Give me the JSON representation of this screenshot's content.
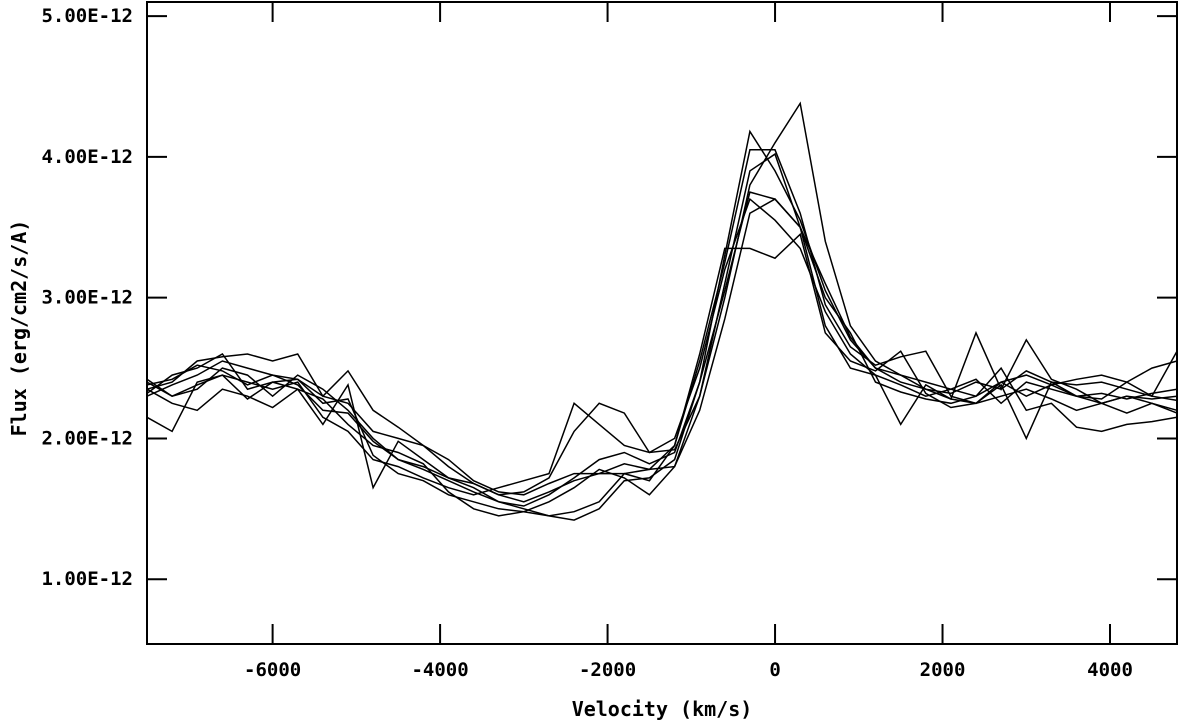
{
  "chart_data": {
    "type": "line",
    "xlabel": "Velocity (km/s)",
    "ylabel": "Flux (erg/cm2/s/A)",
    "xlim": [
      -7500,
      4800
    ],
    "ylim": [
      5.4e-13,
      5.1e-12
    ],
    "xticks": [
      {
        "value": -6000,
        "label": "-6000"
      },
      {
        "value": -4000,
        "label": "-4000"
      },
      {
        "value": -2000,
        "label": "-2000"
      },
      {
        "value": 0,
        "label": "0"
      },
      {
        "value": 2000,
        "label": "2000"
      },
      {
        "value": 4000,
        "label": "4000"
      }
    ],
    "yticks": [
      {
        "value": 1e-12,
        "label": "1.00E-12"
      },
      {
        "value": 2e-12,
        "label": "2.00E-12"
      },
      {
        "value": 3e-12,
        "label": "3.00E-12"
      },
      {
        "value": 4e-12,
        "label": "4.00E-12"
      },
      {
        "value": 5e-12,
        "label": "5.00E-12"
      }
    ],
    "grid": false,
    "legend": false,
    "x": [
      -7500,
      -7200,
      -6900,
      -6600,
      -6300,
      -6000,
      -5700,
      -5400,
      -5100,
      -4800,
      -4500,
      -4200,
      -3900,
      -3600,
      -3300,
      -3000,
      -2700,
      -2400,
      -2100,
      -1800,
      -1500,
      -1200,
      -900,
      -600,
      -300,
      0,
      300,
      600,
      900,
      1200,
      1500,
      1800,
      2100,
      2400,
      2700,
      3000,
      3300,
      3600,
      3900,
      4200,
      4500,
      4800
    ],
    "series": [
      {
        "values": [
          2.3e-12,
          2.38e-12,
          2.45e-12,
          2.55e-12,
          2.5e-12,
          2.45e-12,
          2.42e-12,
          2.3e-12,
          2.25e-12,
          2.05e-12,
          2e-12,
          1.95e-12,
          1.8e-12,
          1.68e-12,
          1.6e-12,
          1.55e-12,
          1.62e-12,
          1.7e-12,
          1.75e-12,
          1.82e-12,
          1.78e-12,
          1.8e-12,
          2.3e-12,
          3e-12,
          3.8e-12,
          4.1e-12,
          4.38e-12,
          3.4e-12,
          2.8e-12,
          2.55e-12,
          2.45e-12,
          2.4e-12,
          2.35e-12,
          2.3e-12,
          2.4e-12,
          2.45e-12,
          2.38e-12,
          2.3e-12,
          2.25e-12,
          2.3e-12,
          2.28e-12,
          2.3e-12
        ]
      },
      {
        "values": [
          2.4e-12,
          2.3e-12,
          2.35e-12,
          2.5e-12,
          2.45e-12,
          2.3e-12,
          2.45e-12,
          2.35e-12,
          2.2e-12,
          2e-12,
          1.85e-12,
          1.78e-12,
          1.7e-12,
          1.62e-12,
          1.55e-12,
          1.5e-12,
          1.45e-12,
          1.42e-12,
          1.5e-12,
          1.7e-12,
          1.72e-12,
          1.85e-12,
          2.4e-12,
          3.3e-12,
          4.18e-12,
          3.9e-12,
          3.55e-12,
          3.05e-12,
          2.7e-12,
          2.5e-12,
          2.4e-12,
          2.35e-12,
          2.28e-12,
          2.25e-12,
          2.3e-12,
          2.35e-12,
          2.28e-12,
          2.2e-12,
          2.25e-12,
          2.3e-12,
          2.25e-12,
          2.2e-12
        ]
      },
      {
        "values": [
          2.15e-12,
          2.05e-12,
          2.4e-12,
          2.45e-12,
          2.4e-12,
          2.35e-12,
          2.4e-12,
          2.15e-12,
          2.05e-12,
          1.85e-12,
          1.8e-12,
          1.72e-12,
          1.65e-12,
          1.6e-12,
          1.65e-12,
          1.7e-12,
          1.75e-12,
          2.25e-12,
          2.1e-12,
          1.95e-12,
          1.9e-12,
          2e-12,
          2.5e-12,
          3.2e-12,
          3.7e-12,
          3.55e-12,
          3.35e-12,
          2.9e-12,
          2.6e-12,
          2.45e-12,
          2.38e-12,
          2.3e-12,
          2.35e-12,
          2.42e-12,
          2.25e-12,
          2.4e-12,
          2.35e-12,
          2.3e-12,
          2.32e-12,
          2.28e-12,
          2.32e-12,
          2.35e-12
        ]
      },
      {
        "values": [
          2.35e-12,
          2.25e-12,
          2.2e-12,
          2.35e-12,
          2.3e-12,
          2.22e-12,
          2.35e-12,
          2.28e-12,
          2.1e-12,
          1.95e-12,
          1.9e-12,
          1.82e-12,
          1.62e-12,
          1.5e-12,
          1.45e-12,
          1.48e-12,
          1.55e-12,
          1.65e-12,
          1.78e-12,
          1.72e-12,
          1.6e-12,
          1.8e-12,
          2.2e-12,
          2.85e-12,
          3.6e-12,
          3.7e-12,
          3.5e-12,
          3e-12,
          2.75e-12,
          2.4e-12,
          2.33e-12,
          2.28e-12,
          2.25e-12,
          2.3e-12,
          2.5e-12,
          2.2e-12,
          2.25e-12,
          2.08e-12,
          2.05e-12,
          2.1e-12,
          2.12e-12,
          2.15e-12
        ]
      },
      {
        "values": [
          2.38e-12,
          2.42e-12,
          2.52e-12,
          2.48e-12,
          2.38e-12,
          2.45e-12,
          2.38e-12,
          2.2e-12,
          2.18e-12,
          1.98e-12,
          1.85e-12,
          1.8e-12,
          1.72e-12,
          1.65e-12,
          1.55e-12,
          1.52e-12,
          1.6e-12,
          1.72e-12,
          1.85e-12,
          1.9e-12,
          1.82e-12,
          1.9e-12,
          2.4e-12,
          3.05e-12,
          3.75e-12,
          3.7e-12,
          3.5e-12,
          3.1e-12,
          2.72e-12,
          2.5e-12,
          2.45e-12,
          2.35e-12,
          2.32e-12,
          2.4e-12,
          2.35e-12,
          2.48e-12,
          2.4e-12,
          2.38e-12,
          2.4e-12,
          2.35e-12,
          2.3e-12,
          2.27e-12
        ]
      },
      {
        "values": [
          2.35e-12,
          2.4e-12,
          2.55e-12,
          2.58e-12,
          2.6e-12,
          2.55e-12,
          2.6e-12,
          2.3e-12,
          2.48e-12,
          2.2e-12,
          2.08e-12,
          1.95e-12,
          1.85e-12,
          1.7e-12,
          1.62e-12,
          1.6e-12,
          1.68e-12,
          1.75e-12,
          1.75e-12,
          1.75e-12,
          1.78e-12,
          1.95e-12,
          2.55e-12,
          3.25e-12,
          4.05e-12,
          4.05e-12,
          3.6e-12,
          2.95e-12,
          2.65e-12,
          2.52e-12,
          2.58e-12,
          2.62e-12,
          2.3e-12,
          2.25e-12,
          2.4e-12,
          2.3e-12,
          2.38e-12,
          2.42e-12,
          2.45e-12,
          2.4e-12,
          2.5e-12,
          2.55e-12
        ]
      },
      {
        "values": [
          2.32e-12,
          2.45e-12,
          2.5e-12,
          2.6e-12,
          2.35e-12,
          2.4e-12,
          2.42e-12,
          2.25e-12,
          2.28e-12,
          1.88e-12,
          1.75e-12,
          1.7e-12,
          1.6e-12,
          1.55e-12,
          1.5e-12,
          1.48e-12,
          1.45e-12,
          1.48e-12,
          1.55e-12,
          1.75e-12,
          1.7e-12,
          1.95e-12,
          2.6e-12,
          3.35e-12,
          3.35e-12,
          3.28e-12,
          3.45e-12,
          2.75e-12,
          2.55e-12,
          2.48e-12,
          2.62e-12,
          2.32e-12,
          2.22e-12,
          2.25e-12,
          2.38e-12,
          2e-12,
          2.4e-12,
          2.3e-12,
          2.28e-12,
          2.4e-12,
          2.3e-12,
          2.62e-12
        ]
      },
      {
        "values": [
          2.42e-12,
          2.3e-12,
          2.38e-12,
          2.45e-12,
          2.28e-12,
          2.4e-12,
          2.35e-12,
          2.1e-12,
          2.38e-12,
          1.65e-12,
          1.98e-12,
          1.85e-12,
          1.72e-12,
          1.68e-12,
          1.6e-12,
          1.62e-12,
          1.72e-12,
          2.05e-12,
          2.25e-12,
          2.18e-12,
          1.9e-12,
          1.92e-12,
          2.3e-12,
          3.1e-12,
          3.9e-12,
          4.02e-12,
          3.5e-12,
          2.8e-12,
          2.5e-12,
          2.45e-12,
          2.1e-12,
          2.38e-12,
          2.28e-12,
          2.75e-12,
          2.35e-12,
          2.7e-12,
          2.42e-12,
          2.35e-12,
          2.25e-12,
          2.18e-12,
          2.25e-12,
          2.18e-12
        ]
      }
    ]
  }
}
